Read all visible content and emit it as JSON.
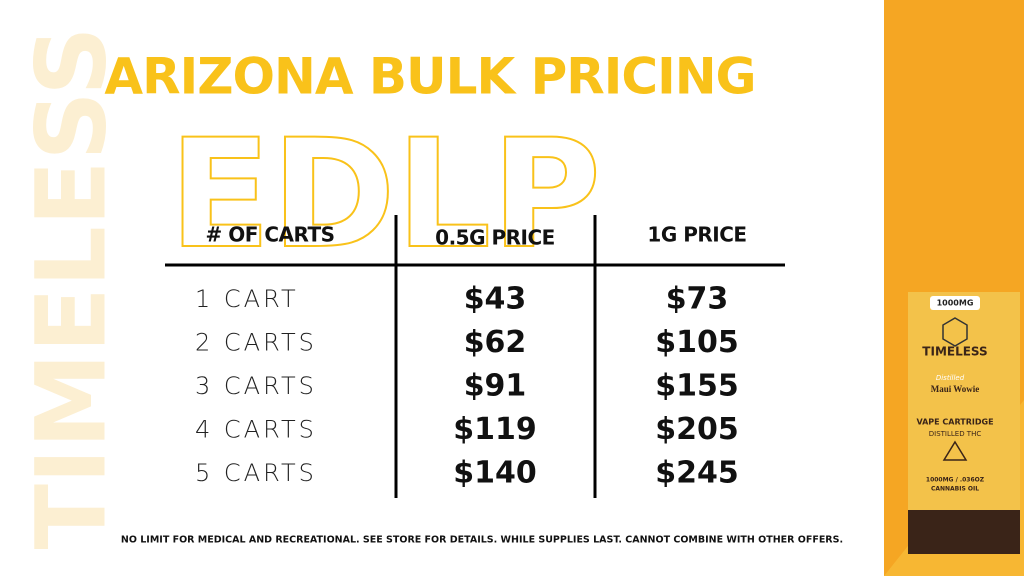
{
  "watermark": "TIMELESS",
  "header": {
    "title": "ARIZONA BULK PRICING",
    "badge": "EDLP"
  },
  "table": {
    "columns": [
      "# OF CARTS",
      "0.5G PRICE",
      "1G PRICE"
    ],
    "rows": [
      [
        "1 CART",
        "$43",
        "$73"
      ],
      [
        "2 CARTS",
        "$62",
        "$105"
      ],
      [
        "3 CARTS",
        "$91",
        "$155"
      ],
      [
        "4 CARTS",
        "$119",
        "$205"
      ],
      [
        "5 CARTS",
        "$140",
        "$245"
      ]
    ]
  },
  "footnote": "NO LIMIT FOR  MEDICAL AND RECREATIONAL. SEE STORE FOR DETAILS. WHILE SUPPLIES LAST. CANNOT COMBINE WITH OTHER OFFERS.",
  "product": {
    "strength": "1000MG",
    "brand": "TIMELESS",
    "style": "Distilled",
    "strain": "Maui Wowie",
    "kind": "VAPE CARTRIDGE",
    "sub": "DISTILLED THC",
    "amount": "1000MG / .036OZ",
    "oil": "CANNABIS OIL"
  }
}
